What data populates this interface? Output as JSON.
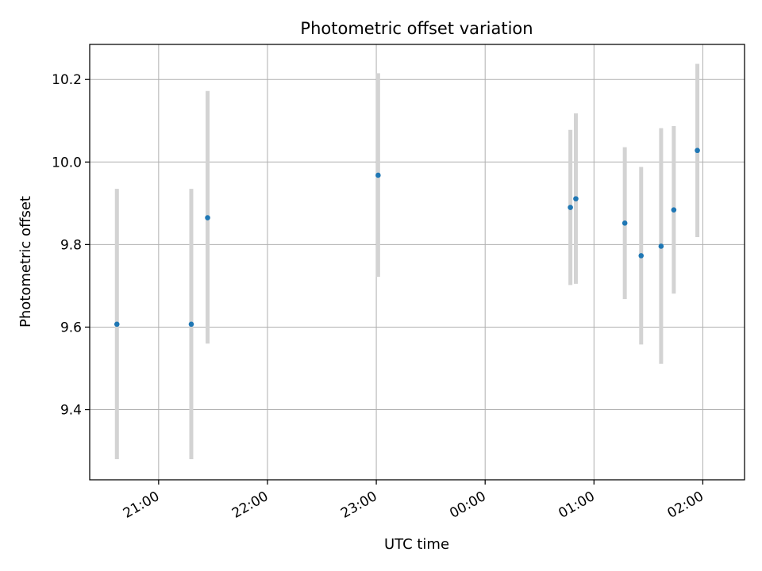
{
  "chart_data": {
    "type": "scatter",
    "title": "Photometric offset variation",
    "xlabel": "UTC time",
    "ylabel": "Photometric offset",
    "x_axis_type": "time",
    "x_ticks": [
      "21:00",
      "22:00",
      "23:00",
      "00:00",
      "01:00",
      "02:00"
    ],
    "x_range": [
      "20:22",
      "02:23"
    ],
    "y_ticks": [
      "9.4",
      "9.6",
      "9.8",
      "10.0",
      "10.2"
    ],
    "ylim": [
      9.23,
      10.285
    ],
    "grid": true,
    "error_bar_color": "#d3d3d3",
    "point_color": "#1f77b4",
    "series": [
      {
        "points": [
          {
            "x": "20:37",
            "y": 9.607,
            "y_low": 9.28,
            "y_high": 9.935
          },
          {
            "x": "21:18",
            "y": 9.607,
            "y_low": 9.28,
            "y_high": 9.935
          },
          {
            "x": "21:27",
            "y": 9.865,
            "y_low": 9.56,
            "y_high": 10.172
          },
          {
            "x": "23:01",
            "y": 9.968,
            "y_low": 9.722,
            "y_high": 10.215
          },
          {
            "x": "00:47",
            "y": 9.89,
            "y_low": 9.702,
            "y_high": 10.078
          },
          {
            "x": "00:50",
            "y": 9.911,
            "y_low": 9.705,
            "y_high": 10.118
          },
          {
            "x": "01:17",
            "y": 9.852,
            "y_low": 9.668,
            "y_high": 10.036
          },
          {
            "x": "01:26",
            "y": 9.773,
            "y_low": 9.558,
            "y_high": 9.988
          },
          {
            "x": "01:37",
            "y": 9.796,
            "y_low": 9.511,
            "y_high": 10.082
          },
          {
            "x": "01:44",
            "y": 9.884,
            "y_low": 9.681,
            "y_high": 10.087
          },
          {
            "x": "01:57",
            "y": 10.028,
            "y_low": 9.818,
            "y_high": 10.238
          }
        ]
      }
    ]
  }
}
